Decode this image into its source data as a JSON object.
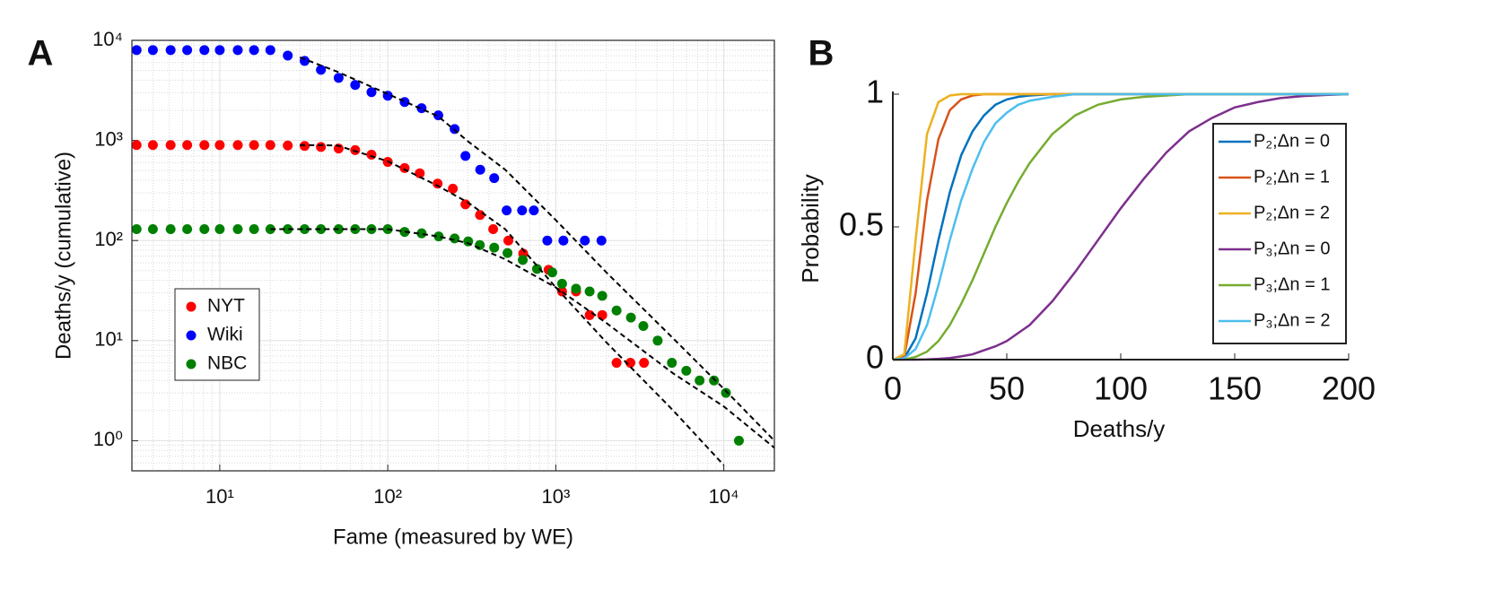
{
  "chart_data": [
    {
      "type": "scatter",
      "panel": "A",
      "x_label": "Fame  (measured by WE)",
      "y_label": "Deaths/y  (cumulative)",
      "xlog": true,
      "ylog": true,
      "grid": true,
      "minor_grid": true,
      "legend": "lower left",
      "xlim": [
        3,
        20000
      ],
      "ylim": [
        0.5,
        10000
      ],
      "xticks": [
        {
          "value": 10,
          "label": "10¹"
        },
        {
          "value": 100,
          "label": "10²"
        },
        {
          "value": 1000,
          "label": "10³"
        },
        {
          "value": 10000,
          "label": "10⁴"
        }
      ],
      "yticks": [
        {
          "value": 1,
          "label": "10⁰"
        },
        {
          "value": 10,
          "label": "10¹"
        },
        {
          "value": 100,
          "label": "10²"
        },
        {
          "value": 1000,
          "label": "10³"
        },
        {
          "value": 10000,
          "label": "10⁴"
        }
      ],
      "series": [
        {
          "name": "NYT",
          "color": "#ff0000",
          "x": [
            3.2,
            4,
            5.1,
            6.4,
            8.1,
            10,
            12.8,
            16,
            20,
            25.4,
            32,
            40,
            51,
            64,
            80,
            100,
            126,
            155,
            198,
            244,
            290,
            354,
            424,
            522,
            640,
            906,
            1090,
            1320,
            1590,
            1890,
            2300,
            2780,
            3350
          ],
          "values": [
            900,
            900,
            900,
            900,
            900,
            900,
            900,
            900,
            900,
            890,
            880,
            860,
            830,
            800,
            720,
            610,
            530,
            470,
            370,
            330,
            230,
            180,
            130,
            100,
            74,
            51,
            31,
            31,
            18,
            18,
            6,
            6,
            6
          ]
        },
        {
          "name": "Wiki",
          "color": "#0000ff",
          "x": [
            3.2,
            4,
            5.1,
            6.4,
            8.1,
            10,
            12.8,
            16,
            20,
            25.4,
            32,
            40,
            51,
            64,
            80,
            100,
            126,
            159,
            200,
            250,
            290,
            355,
            430,
            510,
            630,
            740,
            890,
            1110,
            1490,
            1870
          ],
          "values": [
            8000,
            8000,
            8000,
            8000,
            8000,
            8000,
            8000,
            8000,
            8000,
            7050,
            6230,
            5070,
            4220,
            3580,
            3040,
            2800,
            2420,
            2100,
            1780,
            1300,
            700,
            510,
            420,
            200,
            200,
            200,
            100,
            100,
            100,
            100
          ]
        },
        {
          "name": "NBC",
          "color": "#008000",
          "x": [
            3.2,
            4,
            5.1,
            6.4,
            8.1,
            10,
            12.8,
            16,
            20,
            25.4,
            32,
            40,
            51,
            64,
            80,
            100,
            126,
            159,
            201,
            250,
            301,
            353,
            430,
            516,
            636,
            773,
            953,
            1090,
            1320,
            1590,
            1890,
            2300,
            2800,
            3320,
            4040,
            4910,
            5980,
            7180,
            8740,
            10300,
            12300
          ],
          "values": [
            130,
            130,
            130,
            130,
            130,
            130,
            130,
            130,
            130,
            130,
            130,
            130,
            130,
            130,
            130,
            130,
            122,
            118,
            110,
            105,
            98,
            90,
            85,
            75,
            64,
            52,
            48,
            37,
            33,
            31,
            28,
            20,
            17,
            14,
            10,
            6,
            5,
            4,
            4,
            3,
            1
          ]
        }
      ],
      "fit_lines": [
        {
          "color": "#000000",
          "x": [
            30,
            50,
            100,
            200,
            300,
            500,
            1000,
            2000,
            5000,
            10000,
            20000
          ],
          "values": [
            6760,
            4870,
            2910,
            1740,
            980,
            510,
            160,
            48,
            10.5,
            3.3,
            1.0
          ]
        },
        {
          "color": "#000000",
          "x": [
            30,
            50,
            100,
            200,
            300,
            500,
            1000,
            2000,
            5000,
            10000
          ],
          "values": [
            900,
            890,
            620,
            350,
            240,
            130,
            34,
            9.6,
            2.0,
            0.57
          ]
        },
        {
          "color": "#000000",
          "x": [
            20,
            50,
            100,
            200,
            300,
            500,
            1000,
            2000,
            5000,
            10000,
            20000
          ],
          "values": [
            130,
            130,
            130,
            110,
            94,
            65,
            34,
            15,
            4.7,
            2.2,
            0.85
          ]
        }
      ]
    },
    {
      "type": "line",
      "panel": "B",
      "x_label": "Deaths/y",
      "y_label": "Probability",
      "legend": "right",
      "xlim": [
        0,
        200
      ],
      "ylim": [
        0,
        1
      ],
      "xticks": [
        0,
        50,
        100,
        150,
        200
      ],
      "yticks": [
        0,
        0.5,
        1
      ],
      "x": [
        0,
        5,
        10,
        15,
        20,
        25,
        30,
        35,
        40,
        45,
        50,
        55,
        60,
        70,
        80,
        90,
        100,
        110,
        120,
        130,
        140,
        150,
        160,
        170,
        180,
        190,
        200
      ],
      "series": [
        {
          "name": "P₂;Δn = 0",
          "color": "#0072bd",
          "values": [
            0,
            0.005,
            0.08,
            0.25,
            0.45,
            0.63,
            0.77,
            0.86,
            0.92,
            0.96,
            0.98,
            0.99,
            0.995,
            1,
            1,
            1,
            1,
            1,
            1,
            1,
            1,
            1,
            1,
            1,
            1,
            1,
            1
          ]
        },
        {
          "name": "P₂;Δn = 1",
          "color": "#d95319",
          "values": [
            0,
            0.01,
            0.25,
            0.6,
            0.83,
            0.94,
            0.98,
            0.995,
            1,
            1,
            1,
            1,
            1,
            1,
            1,
            1,
            1,
            1,
            1,
            1,
            1,
            1,
            1,
            1,
            1,
            1,
            1
          ]
        },
        {
          "name": "P₂;Δn = 2",
          "color": "#edb120",
          "values": [
            0,
            0.02,
            0.45,
            0.85,
            0.97,
            0.995,
            1,
            1,
            1,
            1,
            1,
            1,
            1,
            1,
            1,
            1,
            1,
            1,
            1,
            1,
            1,
            1,
            1,
            1,
            1,
            1,
            1
          ]
        },
        {
          "name": "P₃;Δn = 0",
          "color": "#7e2f8e",
          "values": [
            0,
            0,
            0,
            0.001,
            0.003,
            0.006,
            0.012,
            0.02,
            0.035,
            0.05,
            0.07,
            0.1,
            0.13,
            0.22,
            0.33,
            0.45,
            0.57,
            0.68,
            0.78,
            0.86,
            0.91,
            0.95,
            0.97,
            0.985,
            0.993,
            0.997,
            1
          ]
        },
        {
          "name": "P₃;Δn = 1",
          "color": "#77ac30",
          "values": [
            0,
            0,
            0.01,
            0.03,
            0.07,
            0.13,
            0.21,
            0.3,
            0.4,
            0.5,
            0.59,
            0.67,
            0.74,
            0.85,
            0.92,
            0.96,
            0.98,
            0.99,
            0.995,
            1,
            1,
            1,
            1,
            1,
            1,
            1,
            1
          ]
        },
        {
          "name": "P₃;Δn = 2",
          "color": "#4dbeee",
          "values": [
            0,
            0.005,
            0.04,
            0.13,
            0.28,
            0.45,
            0.6,
            0.72,
            0.82,
            0.89,
            0.93,
            0.96,
            0.975,
            0.99,
            1,
            1,
            1,
            1,
            1,
            1,
            1,
            1,
            1,
            1,
            1,
            1,
            1
          ]
        }
      ]
    }
  ]
}
